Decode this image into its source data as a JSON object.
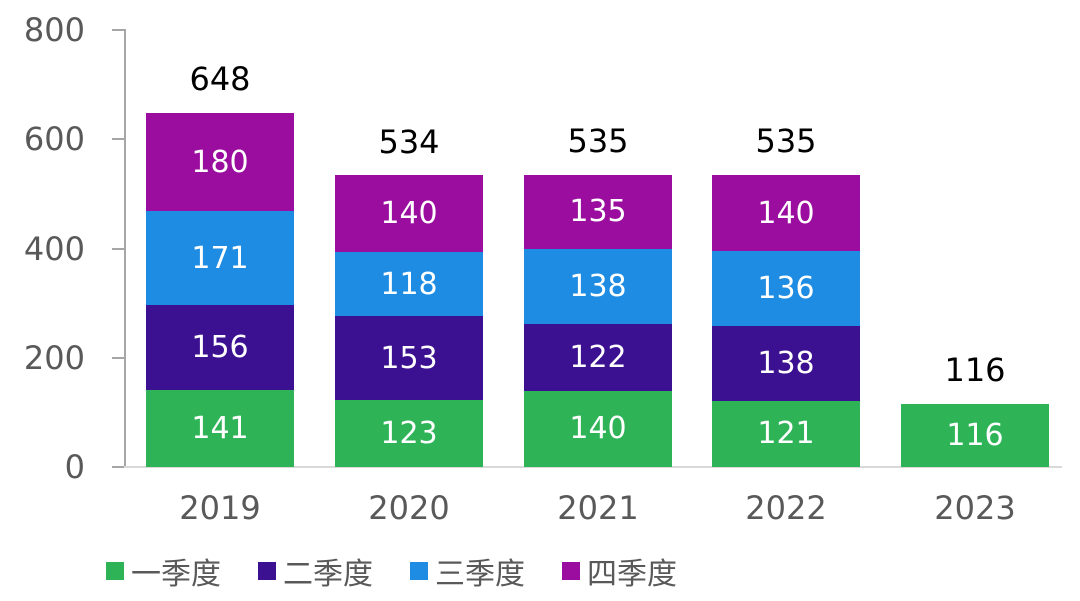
{
  "chart_data": {
    "type": "bar",
    "stacked": true,
    "title": "",
    "xlabel": "",
    "ylabel": "",
    "categories": [
      "2019",
      "2020",
      "2021",
      "2022",
      "2023"
    ],
    "series": [
      {
        "name": "一季度",
        "color": "#2EB457",
        "values": [
          141,
          123,
          140,
          121,
          116
        ]
      },
      {
        "name": "二季度",
        "color": "#3B1191",
        "values": [
          156,
          153,
          122,
          138,
          null
        ]
      },
      {
        "name": "三季度",
        "color": "#1E8CE3",
        "values": [
          171,
          118,
          138,
          136,
          null
        ]
      },
      {
        "name": "四季度",
        "color": "#9B0D9E",
        "values": [
          180,
          140,
          135,
          140,
          null
        ]
      }
    ],
    "totals": [
      648,
      534,
      535,
      535,
      116
    ],
    "y_axis": {
      "min": 0,
      "max": 800,
      "ticks": [
        0,
        200,
        400,
        600,
        800
      ]
    },
    "legend": [
      "一季度",
      "二季度",
      "三季度",
      "四季度"
    ],
    "legend_position": "bottom",
    "grid": false,
    "value_label_color": "#FFFFFF",
    "total_label_color": "#000000",
    "axis_label_color": "#595959",
    "axis_line_color": "#A6A6A6",
    "baseline_color": "#D9D9D9"
  }
}
